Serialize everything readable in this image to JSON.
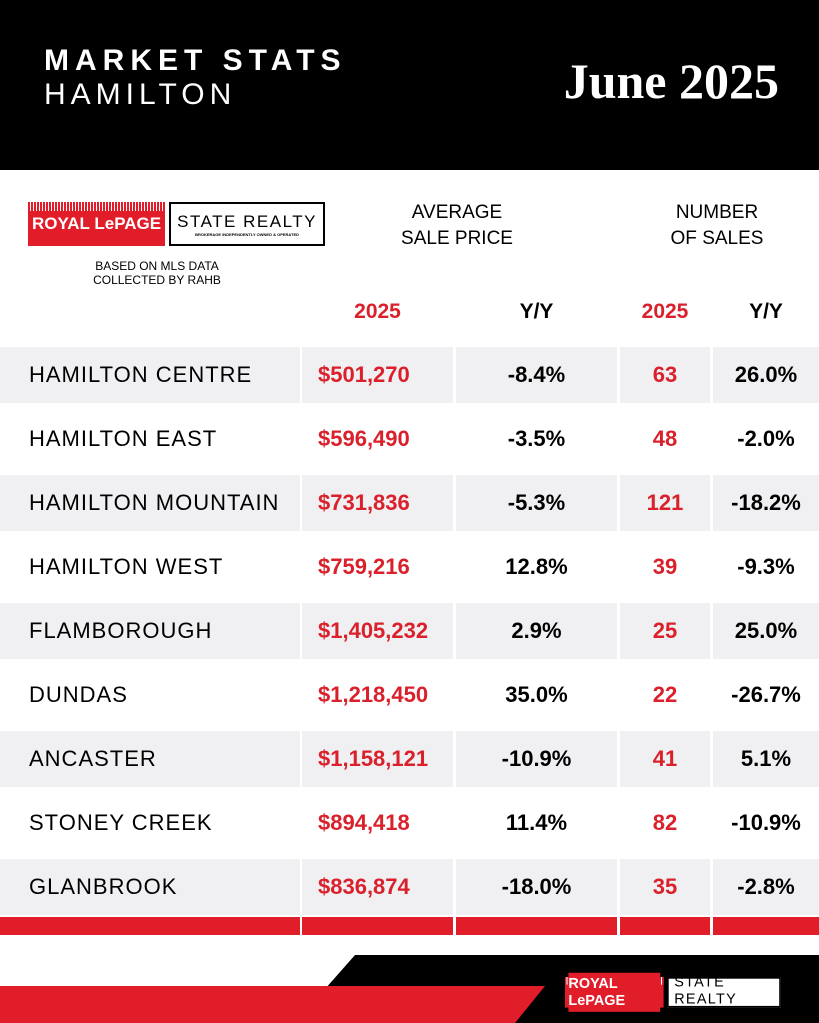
{
  "header": {
    "title": "MARKET STATS",
    "subtitle": "HAMILTON",
    "date": "June 2025"
  },
  "logo": {
    "brand": "ROYAL LePAGE",
    "office": "STATE REALTY",
    "tagline": "BROKERAGE INDEPENDENTLY OWNED & OPERATED"
  },
  "note": [
    "BASED ON MLS DATA",
    "COLLECTED BY RAHB"
  ],
  "table": {
    "groups": [
      [
        "AVERAGE",
        "SALE PRICE"
      ],
      [
        "NUMBER",
        "OF SALES"
      ]
    ],
    "columns": [
      "2025",
      "Y/Y",
      "2025",
      "Y/Y"
    ],
    "rows": [
      [
        "HAMILTON CENTRE",
        "$501,270",
        "-8.4%",
        "63",
        "26.0%"
      ],
      [
        "HAMILTON EAST",
        "$596,490",
        "-3.5%",
        "48",
        "-2.0%"
      ],
      [
        "HAMILTON MOUNTAIN",
        "$731,836",
        "-5.3%",
        "121",
        "-18.2%"
      ],
      [
        "HAMILTON WEST",
        "$759,216",
        "12.8%",
        "39",
        "-9.3%"
      ],
      [
        "FLAMBOROUGH",
        "$1,405,232",
        "2.9%",
        "25",
        "25.0%"
      ],
      [
        "DUNDAS",
        "$1,218,450",
        "35.0%",
        "22",
        "-26.7%"
      ],
      [
        "ANCASTER",
        "$1,158,121",
        "-10.9%",
        "41",
        "5.1%"
      ],
      [
        "STONEY CREEK",
        "$894,418",
        "11.4%",
        "82",
        "-10.9%"
      ],
      [
        "GLANBROOK",
        "$836,874",
        "-18.0%",
        "35",
        "-2.8%"
      ]
    ]
  }
}
